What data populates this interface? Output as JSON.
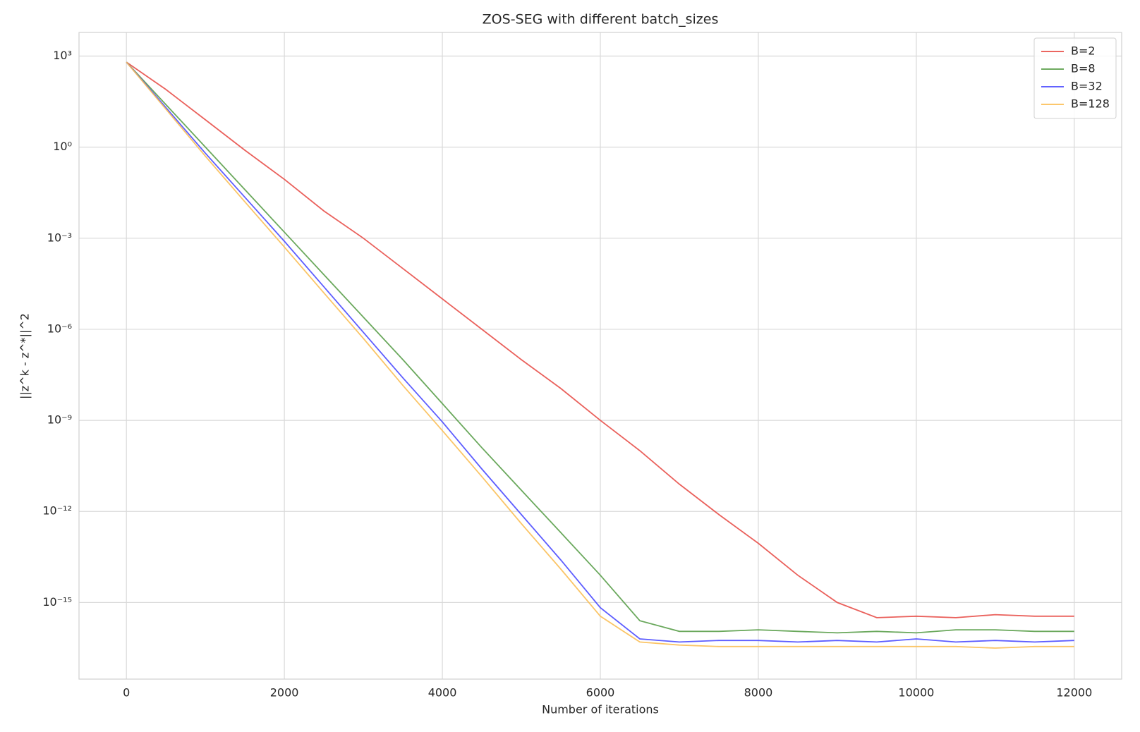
{
  "chart_data": {
    "type": "line",
    "title": "ZOS-SEG with different batch_sizes",
    "x_label": "Number of iterations",
    "y_label": "||z^k - z^*||^2",
    "x": [
      0,
      500,
      1000,
      1500,
      2000,
      2500,
      3000,
      3500,
      4000,
      4500,
      5000,
      5500,
      6000,
      6500,
      7000,
      7500,
      8000,
      8500,
      9000,
      9500,
      10000,
      10500,
      11000,
      11500,
      12000
    ],
    "series": [
      {
        "name": "B=2",
        "color": "#e8504a",
        "values": [
          631,
          79.4,
          7.94,
          0.794,
          0.0871,
          0.00794,
          0.001,
          0.0001,
          1e-05,
          1e-06,
          1e-07,
          1.12e-08,
          1e-09,
          1e-10,
          7.94e-12,
          7.94e-13,
          8.91e-14,
          7.94e-15,
          1e-15,
          3.16e-16,
          3.55e-16,
          3.16e-16,
          3.98e-16,
          3.55e-16,
          3.55e-16
        ]
      },
      {
        "name": "B=8",
        "color": "#5a9e4a",
        "values": [
          631,
          25.1,
          1,
          0.0398,
          0.00158,
          6.31e-05,
          2.51e-06,
          1e-07,
          3.55e-09,
          1.26e-10,
          5.01e-12,
          2e-13,
          7.94e-15,
          2.51e-16,
          1.12e-16,
          1.12e-16,
          1.26e-16,
          1.12e-16,
          1e-16,
          1.12e-16,
          1e-16,
          1.26e-16,
          1.26e-16,
          1.12e-16,
          1.12e-16
        ]
      },
      {
        "name": "B=32",
        "color": "#4b4bff",
        "values": [
          631,
          20,
          0.631,
          0.0224,
          0.000794,
          2.51e-05,
          7.94e-07,
          2.51e-08,
          8.91e-10,
          2.51e-11,
          7.94e-13,
          2.51e-14,
          6.76e-16,
          6.31e-17,
          5.01e-17,
          5.62e-17,
          5.62e-17,
          5.01e-17,
          5.62e-17,
          5.01e-17,
          6.31e-17,
          5.01e-17,
          5.62e-17,
          5.01e-17,
          5.62e-17
        ]
      },
      {
        "name": "B=128",
        "color": "#fbbf57",
        "values": [
          631,
          17.8,
          0.501,
          0.0158,
          0.000513,
          1.58e-05,
          5.01e-07,
          1.41e-08,
          4.57e-10,
          1.41e-11,
          3.98e-13,
          1.26e-14,
          3.55e-16,
          5.01e-17,
          3.98e-17,
          3.55e-17,
          3.55e-17,
          3.55e-17,
          3.55e-17,
          3.55e-17,
          3.55e-17,
          3.55e-17,
          3.16e-17,
          3.55e-17,
          3.55e-17
        ]
      }
    ],
    "xlim": [
      -600,
      12600
    ],
    "xticks": [
      0,
      2000,
      4000,
      6000,
      8000,
      10000,
      12000
    ],
    "ylim": [
      3e-18,
      6000
    ],
    "yticks": [
      {
        "value": 1000,
        "label": "10³"
      },
      {
        "value": 1,
        "label": "10⁰"
      },
      {
        "value": 0.001,
        "label": "10⁻³"
      },
      {
        "value": 1e-06,
        "label": "10⁻⁶"
      },
      {
        "value": 1e-09,
        "label": "10⁻⁹"
      },
      {
        "value": 1e-12,
        "label": "10⁻¹²"
      },
      {
        "value": 1e-15,
        "label": "10⁻¹⁵"
      }
    ],
    "log_y": true,
    "grid": true,
    "legend": "upper right"
  }
}
